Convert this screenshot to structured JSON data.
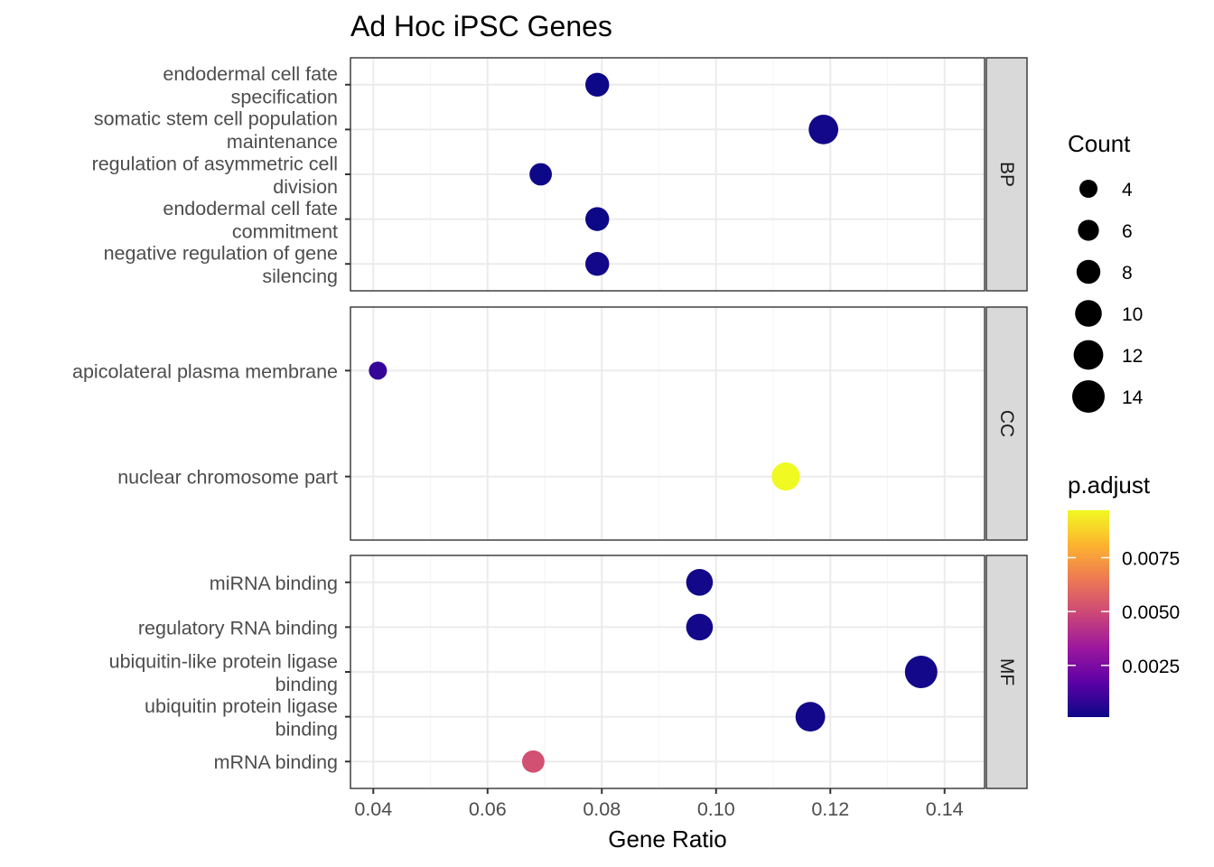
{
  "chart_data": {
    "type": "scatter",
    "title": "Ad Hoc iPSC Genes",
    "xlabel": "Gene Ratio",
    "xlim": [
      0.036,
      0.147
    ],
    "xticks": [
      0.04,
      0.06,
      0.08,
      0.1,
      0.12,
      0.14
    ],
    "xtick_labels": [
      "0.04",
      "0.06",
      "0.08",
      "0.10",
      "0.12",
      "0.14"
    ],
    "grid": true,
    "legend_placement": "right",
    "panels": [
      {
        "strip": "BP",
        "points": [
          {
            "term_lines": [
              "endodermal cell fate",
              "specification"
            ],
            "gene_ratio": 0.0792,
            "count": 8,
            "p_adjust": 0.0001
          },
          {
            "term_lines": [
              "somatic stem cell population",
              "maintenance"
            ],
            "gene_ratio": 0.1188,
            "count": 12,
            "p_adjust": 0.0002
          },
          {
            "term_lines": [
              "regulation of asymmetric cell",
              "division"
            ],
            "gene_ratio": 0.0693,
            "count": 7,
            "p_adjust": 0.0001
          },
          {
            "term_lines": [
              "endodermal cell fate",
              "commitment"
            ],
            "gene_ratio": 0.0792,
            "count": 8,
            "p_adjust": 0.0001
          },
          {
            "term_lines": [
              "negative regulation of gene",
              "silencing"
            ],
            "gene_ratio": 0.0792,
            "count": 8,
            "p_adjust": 0.0002
          }
        ]
      },
      {
        "strip": "CC",
        "points": [
          {
            "term_lines": [
              "apicolateral plasma membrane"
            ],
            "gene_ratio": 0.0408,
            "count": 4,
            "p_adjust": 0.0009
          },
          {
            "term_lines": [
              "nuclear chromosome part"
            ],
            "gene_ratio": 0.1122,
            "count": 11,
            "p_adjust": 0.0097
          }
        ]
      },
      {
        "strip": "MF",
        "points": [
          {
            "term_lines": [
              "miRNA binding"
            ],
            "gene_ratio": 0.0971,
            "count": 10,
            "p_adjust": 0.0002
          },
          {
            "term_lines": [
              "regulatory RNA binding"
            ],
            "gene_ratio": 0.0971,
            "count": 10,
            "p_adjust": 0.0002
          },
          {
            "term_lines": [
              "ubiquitin-like protein ligase",
              "binding"
            ],
            "gene_ratio": 0.1359,
            "count": 14,
            "p_adjust": 0.0002
          },
          {
            "term_lines": [
              "ubiquitin protein ligase",
              "binding"
            ],
            "gene_ratio": 0.1165,
            "count": 12,
            "p_adjust": 0.0002
          },
          {
            "term_lines": [
              "mRNA binding"
            ],
            "gene_ratio": 0.068,
            "count": 7,
            "p_adjust": 0.0052
          }
        ]
      }
    ],
    "size_legend": {
      "title": "Count",
      "values": [
        4,
        6,
        8,
        10,
        12,
        14
      ],
      "labels": [
        "4",
        "6",
        "8",
        "10",
        "12",
        "14"
      ]
    },
    "color_legend": {
      "title": "p.adjust",
      "range": [
        0.0001,
        0.0097
      ],
      "ticks": [
        0.0025,
        0.005,
        0.0075
      ],
      "tick_labels": [
        "0.0025",
        "0.0050",
        "0.0075"
      ],
      "colors": [
        "#0d0887",
        "#5c01a6",
        "#9c179e",
        "#cc4778",
        "#ed7953",
        "#fdb42f",
        "#f0f921"
      ]
    },
    "colors": {
      "panel_border": "#333333",
      "grid_major": "#ebebeb",
      "grid_minor": "#f5f5f5",
      "strip_fill": "#d9d9d9",
      "axis_text": "#4d4d4d",
      "text": "#000000"
    }
  }
}
